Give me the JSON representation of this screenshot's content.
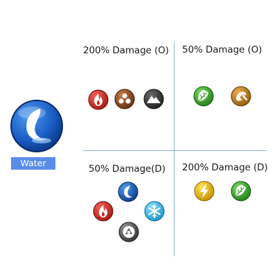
{
  "type_label": "Water",
  "icons": {
    "main": "water-icon",
    "offense_strong": [
      "fire-icon",
      "rock-icon",
      "ground-icon"
    ],
    "offense_weak": [
      "grass-icon",
      "dragon-icon"
    ],
    "defense_resist": [
      "water-icon",
      "fire-icon",
      "ice-icon",
      "steel-icon"
    ],
    "defense_weak": [
      "electric-icon",
      "grass-icon"
    ]
  },
  "quadrants": {
    "offense_strong": {
      "title": "200% Damage (O)"
    },
    "offense_weak": {
      "title": "50% Damage (O)"
    },
    "defense_resist": {
      "title": "50% Damage(D)"
    },
    "defense_weak": {
      "title": "200% Damage (D)"
    }
  },
  "colors": {
    "divider": "#86b0dc",
    "label_bg": "#5b8de8",
    "water": "#1d63c8",
    "fire": "#d0231c",
    "rock": "#8e4a1f",
    "ground": "#3a3a3a",
    "grass": "#3aa02c",
    "dragon": "#c0801c",
    "ice": "#35b6ee",
    "steel": "#5c5c5c",
    "electric": "#e8b000"
  }
}
